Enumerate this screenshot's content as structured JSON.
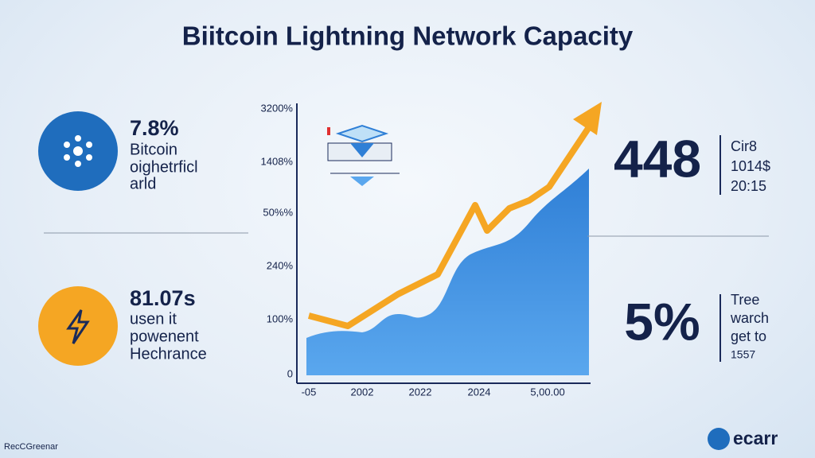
{
  "header": {
    "title": "Biitcoin Lightning Network Capacity"
  },
  "left_stats": [
    {
      "value": "7.8%",
      "lines": [
        "Bitcoin",
        "oighetrficl",
        "arld"
      ]
    },
    {
      "value": "81.07s",
      "lines": [
        "usen it",
        "powenent",
        "Hechrance"
      ]
    }
  ],
  "right_stats": [
    {
      "value": "448",
      "lines": [
        "Cir8",
        "1014$",
        "20:15"
      ]
    },
    {
      "value": "5%",
      "lines": [
        "Tree",
        "warch",
        "get to",
        "1557"
      ]
    }
  ],
  "chart": {
    "y_labels": [
      "3200%",
      "1408%",
      "50%%",
      "240%",
      "100%",
      "0"
    ],
    "x_labels": [
      "-05",
      "2002",
      "2022",
      "2024",
      "5,00.00"
    ]
  },
  "footer": {
    "left": "RecCGreenar",
    "brand": "ecarr"
  }
}
